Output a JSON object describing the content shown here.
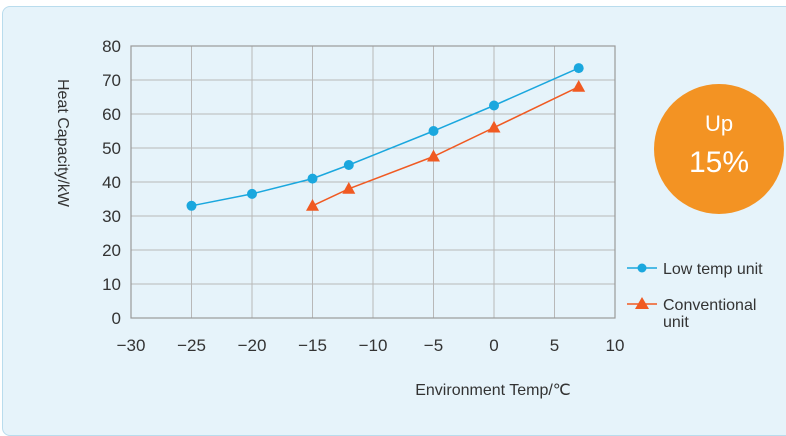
{
  "chart_data": {
    "type": "line",
    "xlabel": "Environment Temp/℃",
    "ylabel": "Heat Capacity/kW",
    "xlim": [
      -30,
      10
    ],
    "ylim": [
      0,
      80
    ],
    "x_ticks": [
      -30,
      -25,
      -20,
      -15,
      -10,
      -5,
      0,
      5,
      10
    ],
    "y_ticks": [
      0,
      10,
      20,
      30,
      40,
      50,
      60,
      70,
      80
    ],
    "x_tick_labels": [
      "−30",
      "−25",
      "−20",
      "−15",
      "−10",
      "−5",
      "0",
      "5",
      "10"
    ],
    "y_tick_labels": [
      "0",
      "10",
      "20",
      "30",
      "40",
      "50",
      "60",
      "70",
      "80"
    ],
    "grid": true,
    "legend_position": "right",
    "series": [
      {
        "name": "Low temp unit",
        "legend_lines": [
          "Low temp unit"
        ],
        "marker": "circle",
        "color": "#1aa7de",
        "x": [
          -25,
          -20,
          -15,
          -12,
          -5,
          0,
          7
        ],
        "y": [
          33,
          36.5,
          41,
          45,
          55,
          62.5,
          73.5
        ]
      },
      {
        "name": "Conventional unit",
        "legend_lines": [
          "Conventional",
          "unit"
        ],
        "marker": "triangle",
        "color": "#f05a22",
        "x": [
          -15,
          -12,
          -5,
          0,
          7
        ],
        "y": [
          33,
          38,
          47.5,
          56,
          68
        ]
      }
    ]
  },
  "badge": {
    "line1": "Up",
    "line2": "15%",
    "color": "#f39323"
  },
  "colors": {
    "panel_bg": "#e6f3fa",
    "panel_border": "#b9dced",
    "grid": "#b8b8b8"
  }
}
